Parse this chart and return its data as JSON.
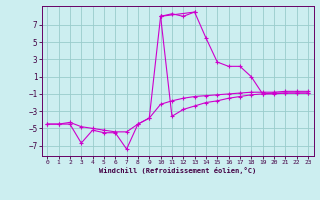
{
  "xlabel": "Windchill (Refroidissement éolien,°C)",
  "background_color": "#cceef0",
  "grid_color": "#99cccc",
  "line_color": "#cc00cc",
  "spine_color": "#660066",
  "text_color": "#440044",
  "xlim": [
    -0.5,
    23.5
  ],
  "ylim": [
    -8.2,
    9.2
  ],
  "xticks": [
    0,
    1,
    2,
    3,
    4,
    5,
    6,
    7,
    8,
    9,
    10,
    11,
    12,
    13,
    14,
    15,
    16,
    17,
    18,
    19,
    20,
    21,
    22,
    23
  ],
  "yticks": [
    -7,
    -5,
    -3,
    -1,
    1,
    3,
    5,
    7
  ],
  "line1_x": [
    0,
    1,
    2,
    3,
    4,
    5,
    6,
    7,
    8,
    9,
    10,
    11,
    12,
    13
  ],
  "line1_y": [
    -4.5,
    -4.5,
    -4.5,
    -6.7,
    -5.2,
    -5.5,
    -5.5,
    -7.4,
    -4.5,
    -3.8,
    8.0,
    8.3,
    8.0,
    8.5
  ],
  "line2_x": [
    10,
    13,
    14,
    15,
    16,
    17,
    18,
    19,
    20,
    21,
    22,
    23
  ],
  "line2_y": [
    8.0,
    8.5,
    5.5,
    2.7,
    2.2,
    2.2,
    1.0,
    -1.0,
    -1.0,
    -0.9,
    -0.9,
    -0.9
  ],
  "line3_x": [
    10,
    11,
    12,
    13,
    14,
    15,
    16,
    17,
    18,
    19,
    20,
    21,
    22,
    23
  ],
  "line3_y": [
    8.0,
    -3.6,
    -2.8,
    -2.4,
    -2.0,
    -1.8,
    -1.5,
    -1.3,
    -1.1,
    -1.0,
    -0.9,
    -0.9,
    -0.9,
    -0.9
  ],
  "line4_x": [
    0,
    1,
    2,
    3,
    4,
    5,
    6,
    7,
    8,
    9,
    10,
    11,
    12,
    13,
    14,
    15,
    16,
    17,
    18,
    19,
    20,
    21,
    22,
    23
  ],
  "line4_y": [
    -4.5,
    -4.5,
    -4.3,
    -4.8,
    -5.0,
    -5.2,
    -5.4,
    -5.4,
    -4.5,
    -3.8,
    -2.2,
    -1.8,
    -1.5,
    -1.3,
    -1.2,
    -1.1,
    -1.0,
    -0.9,
    -0.8,
    -0.8,
    -0.8,
    -0.7,
    -0.7,
    -0.7
  ]
}
